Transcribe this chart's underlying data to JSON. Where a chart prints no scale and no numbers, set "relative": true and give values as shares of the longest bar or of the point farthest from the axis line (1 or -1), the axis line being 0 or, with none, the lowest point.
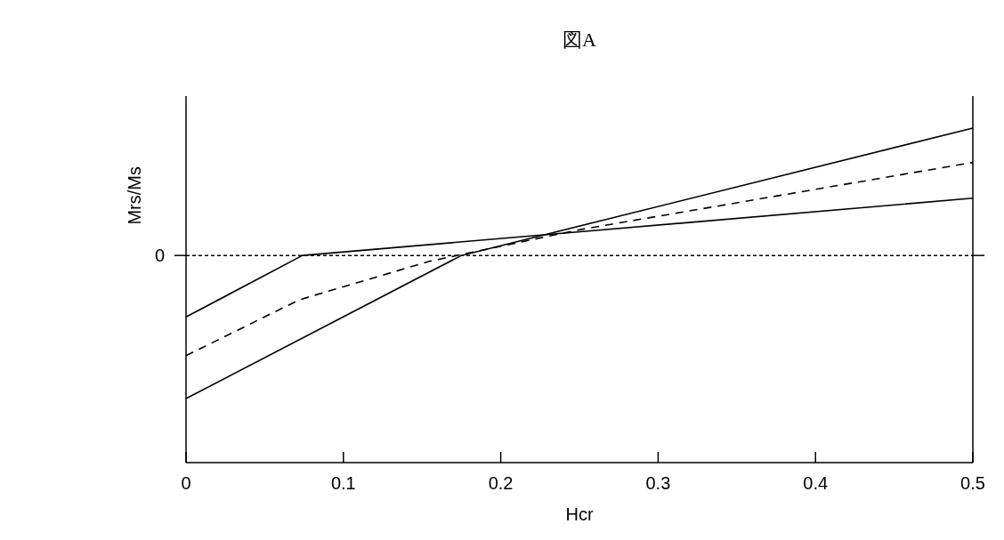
{
  "chart_data": {
    "type": "line",
    "title": "図A",
    "xlabel": "Hcr",
    "ylabel": "Mrs/Ms",
    "relative": true,
    "xlim": [
      0,
      0.5
    ],
    "xticks": [
      0,
      0.1,
      0.2,
      0.3,
      0.4,
      0.5
    ],
    "marker": "none",
    "ref_lines": [
      {
        "axis": "y",
        "value": 0,
        "label": "0",
        "line_style": "dotted",
        "color": "#000000"
      }
    ],
    "series": [
      {
        "color": "#000000",
        "line_style": "solid",
        "x": [
          0,
          0.074,
          0.5
        ],
        "values": [
          -0.43,
          0,
          0.4
        ]
      },
      {
        "color": "#000000",
        "line_style": "dashed",
        "x": [
          0,
          0.072,
          0.155,
          0.25,
          0.5
        ],
        "values": [
          -0.7,
          -0.31,
          -0.04,
          0.18,
          0.65
        ]
      },
      {
        "color": "#000000",
        "line_style": "solid",
        "x": [
          0,
          0.175,
          0.5
        ],
        "values": [
          -1,
          0,
          0.89
        ]
      }
    ]
  }
}
